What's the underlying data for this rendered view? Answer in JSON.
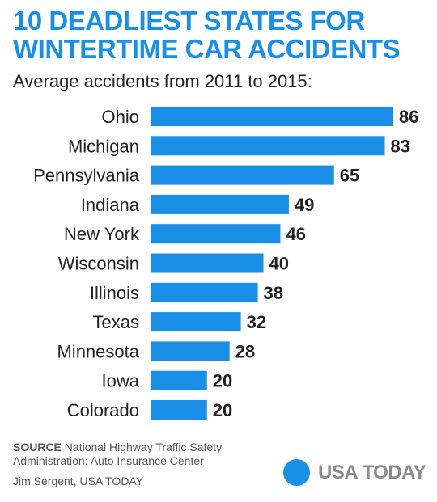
{
  "header": {
    "title_line1": "10 DEADLIEST STATES FOR",
    "title_line2": "WINTERTIME CAR ACCIDENTS",
    "subtitle": "Average accidents from 2011 to 2015:"
  },
  "footer": {
    "source_label": "SOURCE",
    "source_text": "National Highway Traffic Safety Administration; Auto Insurance Center",
    "credit": "Jim Sergent, USA TODAY",
    "logo_text": "USA TODAY"
  },
  "colors": {
    "accent": "#1a8fe8",
    "text": "#222222",
    "footer_text": "#555555",
    "logo_text": "#8a8a8a"
  },
  "chart_data": {
    "type": "bar",
    "orientation": "horizontal",
    "title": "10 DEADLIEST STATES FOR WINTERTIME CAR ACCIDENTS",
    "subtitle": "Average accidents from 2011 to 2015:",
    "categories": [
      "Ohio",
      "Michigan",
      "Pennsylvania",
      "Indiana",
      "New York",
      "Wisconsin",
      "Illinois",
      "Texas",
      "Minnesota",
      "Iowa",
      "Colorado"
    ],
    "values": [
      86,
      83,
      65,
      49,
      46,
      40,
      38,
      32,
      28,
      20,
      20
    ],
    "xlim": [
      0,
      86
    ],
    "grid": false,
    "legend": "none",
    "data_labels": true
  }
}
